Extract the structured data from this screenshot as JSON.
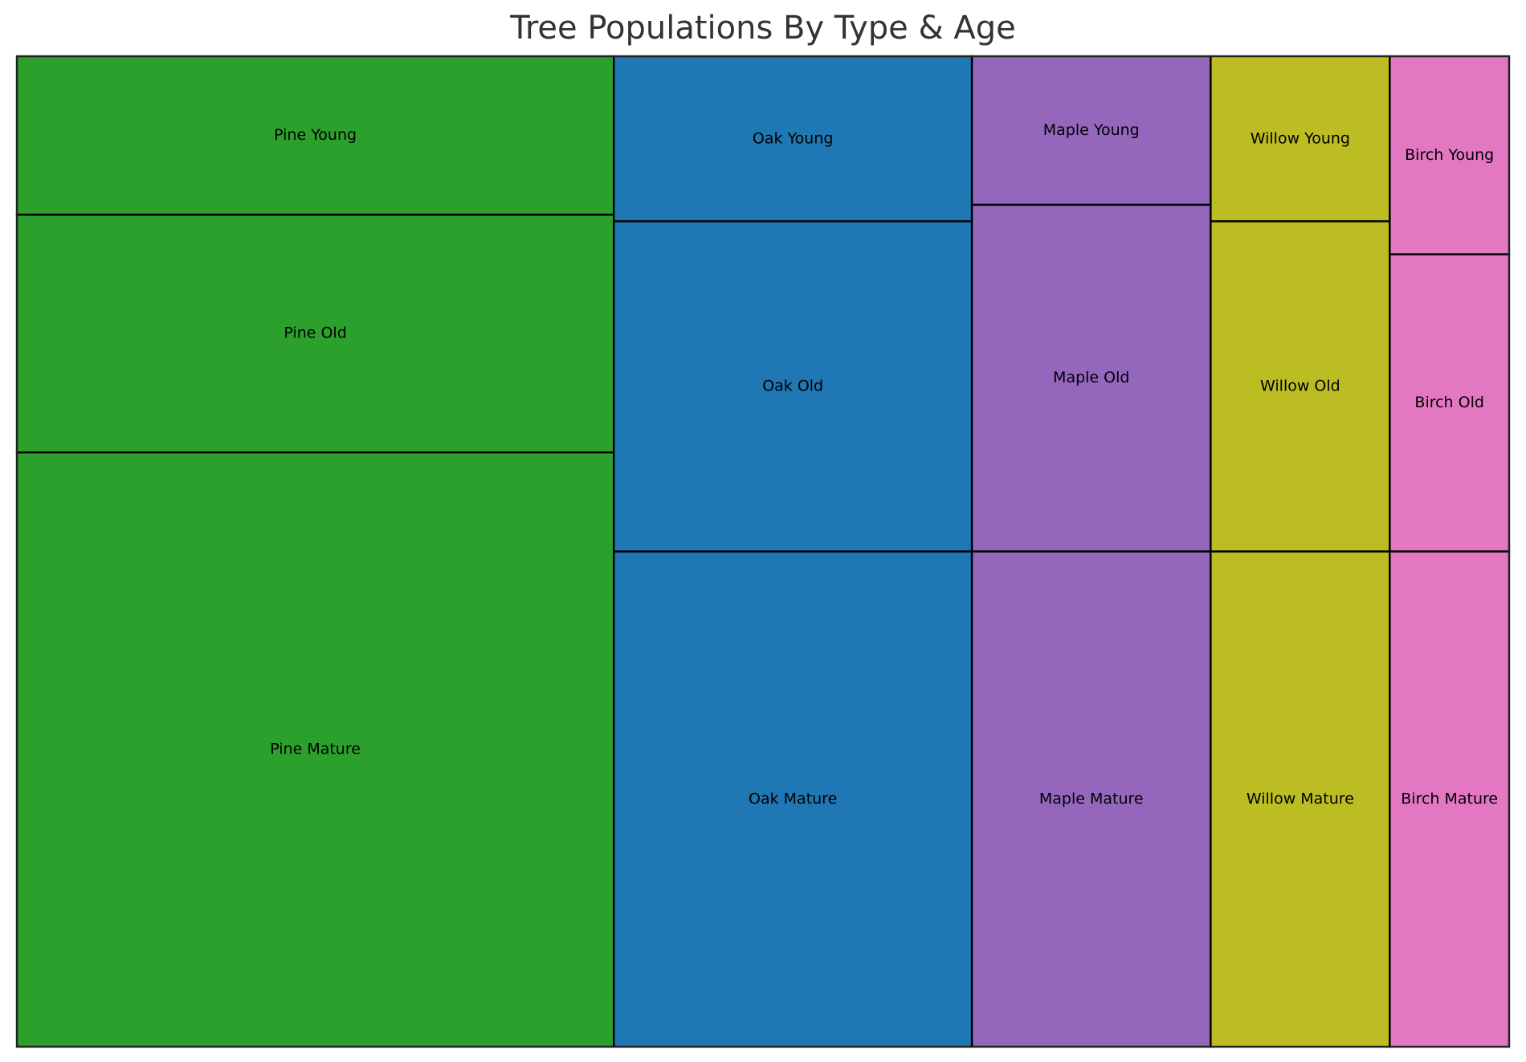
{
  "chart_data": {
    "type": "mosaic",
    "title": "Tree Populations By Type & Age",
    "categories": [
      "Pine",
      "Oak",
      "Maple",
      "Willow",
      "Birch"
    ],
    "colors": {
      "Pine": "#2ca02c",
      "Oak": "#1f77b4",
      "Maple": "#9467bd",
      "Willow": "#bcbd22",
      "Birch": "#e377c2"
    },
    "age_groups": [
      "Young",
      "Old",
      "Mature"
    ],
    "values": {
      "Pine": {
        "Young": 80,
        "Old": 120,
        "Mature": 300
      },
      "Oak": {
        "Young": 50,
        "Old": 100,
        "Mature": 150
      },
      "Maple": {
        "Young": 30,
        "Old": 70,
        "Mature": 100
      },
      "Willow": {
        "Young": 25,
        "Old": 50,
        "Mature": 75
      },
      "Birch": {
        "Young": 20,
        "Old": 30,
        "Mature": 50
      }
    },
    "labels": {
      "Pine": {
        "Young": "Pine Young",
        "Old": "Pine Old",
        "Mature": "Pine Mature"
      },
      "Oak": {
        "Young": "Oak Young",
        "Old": "Oak Old",
        "Mature": "Oak Mature"
      },
      "Maple": {
        "Young": "Maple Young",
        "Old": "Maple Old",
        "Mature": "Maple Mature"
      },
      "Willow": {
        "Young": "Willow Young",
        "Old": "Willow Old",
        "Mature": "Willow Mature"
      },
      "Birch": {
        "Young": "Birch Young",
        "Old": "Birch Old",
        "Mature": "Birch Mature"
      }
    },
    "edge_color": "#000000",
    "grid": false
  }
}
